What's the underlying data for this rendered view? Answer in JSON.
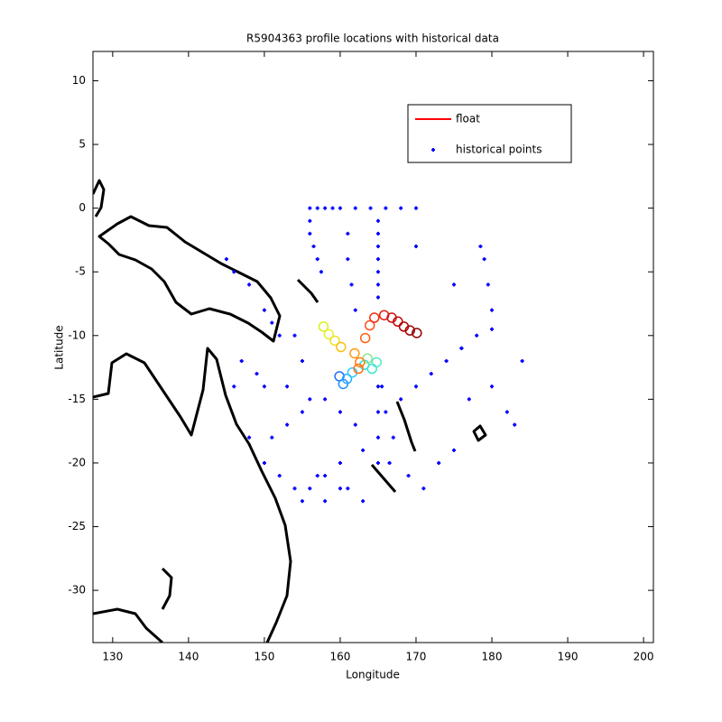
{
  "chart_data": {
    "type": "scatter",
    "title": "R5904363 profile locations with historical data",
    "xlabel": "Longitude",
    "ylabel": "Latitude",
    "xlim": [
      127.4,
      201.3
    ],
    "ylim": [
      -34.1,
      12.3
    ],
    "xticks": [
      130,
      140,
      150,
      160,
      170,
      180,
      190,
      200
    ],
    "yticks": [
      -30,
      -25,
      -20,
      -15,
      -10,
      -5,
      0,
      5,
      10
    ],
    "legend": "upper right",
    "series": [
      {
        "name": "float",
        "color": "#ff0000",
        "x": [
          159.9,
          160.4,
          160.9,
          161.6,
          163.2,
          164.2,
          164.8,
          163.6,
          157.8,
          158.5,
          159.3,
          160.1,
          161.9,
          162.6,
          162.4,
          163.3,
          163.9,
          164.5,
          165.8,
          166.8,
          167.6,
          168.4,
          169.2,
          170.1
        ],
        "values": [
          -13.2,
          -13.8,
          -13.4,
          -12.9,
          -12.3,
          -12.6,
          -12.1,
          -11.8,
          -9.3,
          -9.9,
          -10.4,
          -10.9,
          -11.4,
          -12.1,
          -12.6,
          -10.2,
          -9.2,
          -8.6,
          -8.4,
          -8.6,
          -8.9,
          -9.3,
          -9.6,
          -9.8
        ],
        "point_colors": [
          "#1f6fff",
          "#1f8fff",
          "#2aa8ff",
          "#30c8ff",
          "#30e0e0",
          "#40e8d0",
          "#50e8c8",
          "#8ae88a",
          "#d8f020",
          "#e8f030",
          "#f0e020",
          "#f8c010",
          "#ff9a10",
          "#ff8010",
          "#ff7010",
          "#ff6010",
          "#ff5020",
          "#f03010",
          "#e02010",
          "#d01010",
          "#c00808",
          "#b00000",
          "#a00000",
          "#900000"
        ]
      },
      {
        "name": "historical points",
        "color": "#0000ff",
        "x": [
          156,
          157,
          158,
          159,
          160,
          162,
          164,
          166,
          168,
          170,
          156,
          156,
          156.5,
          157,
          157.5,
          165,
          165,
          165,
          165,
          165,
          165,
          165,
          165,
          165,
          165,
          165,
          161,
          161,
          161.5,
          162,
          165.5,
          166,
          166.5,
          170,
          175,
          178.5,
          179,
          179.5,
          180,
          176,
          145,
          146,
          148,
          150,
          151,
          152,
          154,
          155,
          147,
          149,
          150,
          153,
          156,
          158,
          160,
          162,
          146,
          148,
          151,
          153,
          155,
          150,
          152,
          154,
          156,
          158,
          160,
          163,
          167,
          169,
          171,
          173,
          175,
          177,
          180,
          182,
          183,
          168,
          170,
          172,
          174,
          176,
          178,
          180,
          184,
          158,
          160,
          155,
          157,
          161,
          163
        ],
        "values": [
          0,
          0,
          0,
          0,
          0,
          0,
          0,
          0,
          0,
          0,
          -1,
          -2,
          -3,
          -4,
          -5,
          -1,
          -2,
          -3,
          -4,
          -5,
          -6,
          -7,
          -14,
          -16,
          -18,
          -20,
          -2,
          -4,
          -6,
          -8,
          -14,
          -16,
          -20,
          -3,
          -6,
          -3,
          -4,
          -6,
          -8,
          -11,
          -4,
          -5,
          -6,
          -8,
          -9,
          -10,
          -10,
          -12,
          -12,
          -13,
          -14,
          -14,
          -15,
          -15,
          -16,
          -17,
          -14,
          -18,
          -18,
          -17,
          -16,
          -20,
          -21,
          -22,
          -22,
          -23,
          -20,
          -19,
          -18,
          -21,
          -22,
          -20,
          -19,
          -15,
          -14,
          -16,
          -17,
          -15,
          -14,
          -13,
          -12,
          -11,
          -10,
          -9.5,
          -12,
          -21,
          -22,
          -23,
          -21,
          -22,
          -23
        ]
      }
    ]
  }
}
